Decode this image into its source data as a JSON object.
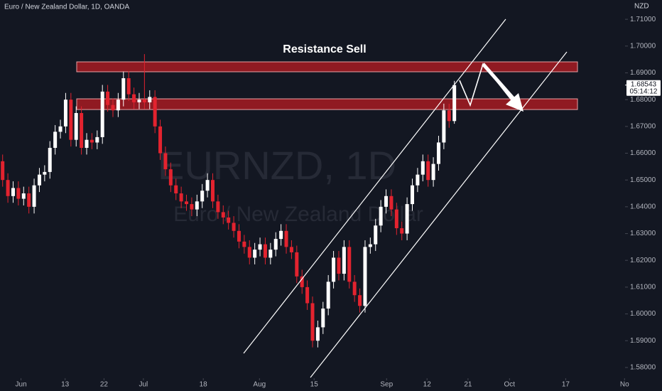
{
  "chart_data": {
    "type": "candlestick",
    "title": "Euro / New Zealand Dollar, 1D, OANDA",
    "watermark": "EURNZD, 1D",
    "watermark_subtitle": "Euro / New Zealand Dollar",
    "currency": "NZD",
    "annotation": "Resistance Sell",
    "current_price": 1.68543,
    "countdown": "05:14:12",
    "up_color": "#ffffff",
    "down_color": "#e3232f",
    "zone_color": "#9e1b22",
    "zones": [
      {
        "top": 1.6941,
        "bottom": 1.6904
      },
      {
        "top": 1.6803,
        "bottom": 1.6763
      }
    ],
    "xlim": [
      -0.5,
      118.5
    ],
    "ylim": [
      1.576,
      1.7172
    ],
    "xticks": [
      {
        "value": 3.5,
        "label": "Jun"
      },
      {
        "value": 11.9,
        "label": "13"
      },
      {
        "value": 19.3,
        "label": "22"
      },
      {
        "value": 26.8,
        "label": "Jul"
      },
      {
        "value": 38.2,
        "label": "18"
      },
      {
        "value": 48.9,
        "label": "Aug"
      },
      {
        "value": 59.3,
        "label": "15"
      },
      {
        "value": 73.1,
        "label": "Sep"
      },
      {
        "value": 80.8,
        "label": "12"
      },
      {
        "value": 88.6,
        "label": "21"
      },
      {
        "value": 96.5,
        "label": "Oct"
      },
      {
        "value": 107.2,
        "label": "17"
      },
      {
        "value": 118.4,
        "label": "No"
      }
    ],
    "yticks": [
      {
        "value": 1.58,
        "label": "1.58000"
      },
      {
        "value": 1.59,
        "label": "1.59000"
      },
      {
        "value": 1.6,
        "label": "1.60000"
      },
      {
        "value": 1.61,
        "label": "1.61000"
      },
      {
        "value": 1.62,
        "label": "1.62000"
      },
      {
        "value": 1.63,
        "label": "1.63000"
      },
      {
        "value": 1.64,
        "label": "1.64000"
      },
      {
        "value": 1.65,
        "label": "1.65000"
      },
      {
        "value": 1.66,
        "label": "1.66000"
      },
      {
        "value": 1.67,
        "label": "1.67000"
      },
      {
        "value": 1.68,
        "label": "1.68000"
      },
      {
        "value": 1.69,
        "label": "1.69000"
      },
      {
        "value": 1.7,
        "label": "1.70000"
      },
      {
        "value": 1.71,
        "label": "1.71000"
      }
    ],
    "open": [
      1.657,
      1.65,
      1.644,
      1.647,
      1.643,
      1.645,
      1.64,
      1.648,
      1.652,
      1.653,
      1.662,
      1.668,
      1.67,
      1.68,
      1.665,
      1.675,
      1.662,
      1.665,
      1.664,
      1.666,
      1.683,
      1.678,
      1.676,
      1.68,
      1.688,
      1.682,
      1.679,
      1.68,
      1.679,
      1.681,
      1.67,
      1.66,
      1.654,
      1.648,
      1.645,
      1.642,
      1.641,
      1.639,
      1.642,
      1.646,
      1.65,
      1.642,
      1.638,
      1.636,
      1.634,
      1.631,
      1.627,
      1.625,
      1.621,
      1.624,
      1.626,
      1.621,
      1.624,
      1.628,
      1.631,
      1.625,
      1.623,
      1.614,
      1.61,
      1.604,
      1.59,
      1.595,
      1.602,
      1.612,
      1.621,
      1.615,
      1.625,
      1.612,
      1.607,
      1.603,
      1.625,
      1.626,
      1.633,
      1.64,
      1.644,
      1.639,
      1.632,
      1.63,
      1.641,
      1.648,
      1.652,
      1.657,
      1.65,
      1.656,
      1.664,
      1.676,
      1.672
    ],
    "high": [
      1.6595,
      1.6525,
      1.6495,
      1.6495,
      1.6475,
      1.6475,
      1.6505,
      1.6545,
      1.6555,
      1.6645,
      1.6705,
      1.6725,
      1.6825,
      1.6825,
      1.6775,
      1.6775,
      1.6675,
      1.6675,
      1.6685,
      1.6855,
      1.6855,
      1.6805,
      1.6825,
      1.6905,
      1.6905,
      1.6845,
      1.6825,
      1.697,
      1.6835,
      1.6835,
      1.6725,
      1.6625,
      1.6565,
      1.6505,
      1.6475,
      1.6445,
      1.6435,
      1.6445,
      1.6485,
      1.6525,
      1.6525,
      1.6445,
      1.6405,
      1.6385,
      1.6365,
      1.6335,
      1.6295,
      1.6275,
      1.6265,
      1.6285,
      1.6285,
      1.6265,
      1.6305,
      1.6335,
      1.6335,
      1.6275,
      1.6255,
      1.6165,
      1.6125,
      1.6065,
      1.5975,
      1.6045,
      1.6145,
      1.6235,
      1.6235,
      1.6275,
      1.6275,
      1.6145,
      1.6095,
      1.6275,
      1.6285,
      1.6355,
      1.6425,
      1.6465,
      1.6465,
      1.6415,
      1.6345,
      1.6435,
      1.6505,
      1.6545,
      1.6595,
      1.6595,
      1.6585,
      1.6665,
      1.6785,
      1.6785,
      1.687
    ],
    "low": [
      1.6475,
      1.6415,
      1.6415,
      1.6405,
      1.6405,
      1.6375,
      1.6375,
      1.6455,
      1.6495,
      1.6505,
      1.6595,
      1.6655,
      1.6675,
      1.6625,
      1.6625,
      1.6595,
      1.6595,
      1.6615,
      1.6615,
      1.6635,
      1.6755,
      1.6735,
      1.6735,
      1.6775,
      1.6795,
      1.6765,
      1.6765,
      1.6765,
      1.6765,
      1.6675,
      1.6575,
      1.6515,
      1.6455,
      1.6425,
      1.6395,
      1.6385,
      1.6365,
      1.6365,
      1.6395,
      1.6435,
      1.6395,
      1.6355,
      1.6335,
      1.6315,
      1.6285,
      1.6245,
      1.6225,
      1.6185,
      1.6185,
      1.6215,
      1.6185,
      1.6185,
      1.6215,
      1.6255,
      1.6225,
      1.6205,
      1.6115,
      1.6075,
      1.6015,
      1.5875,
      1.5875,
      1.5925,
      1.5995,
      1.6095,
      1.6125,
      1.6125,
      1.6095,
      1.6045,
      1.6005,
      1.6005,
      1.6225,
      1.6235,
      1.6305,
      1.6375,
      1.6365,
      1.6295,
      1.6275,
      1.6275,
      1.6385,
      1.6455,
      1.6495,
      1.6475,
      1.6475,
      1.6535,
      1.6615,
      1.6695,
      1.671
    ],
    "close": [
      1.65,
      1.644,
      1.647,
      1.643,
      1.645,
      1.64,
      1.648,
      1.652,
      1.653,
      1.662,
      1.668,
      1.67,
      1.68,
      1.665,
      1.675,
      1.662,
      1.665,
      1.664,
      1.666,
      1.683,
      1.678,
      1.676,
      1.68,
      1.688,
      1.682,
      1.679,
      1.68,
      1.679,
      1.681,
      1.67,
      1.66,
      1.654,
      1.648,
      1.645,
      1.642,
      1.641,
      1.639,
      1.642,
      1.646,
      1.65,
      1.642,
      1.638,
      1.636,
      1.634,
      1.631,
      1.627,
      1.625,
      1.621,
      1.624,
      1.626,
      1.621,
      1.624,
      1.628,
      1.631,
      1.625,
      1.623,
      1.614,
      1.61,
      1.604,
      1.59,
      1.595,
      1.602,
      1.612,
      1.621,
      1.615,
      1.625,
      1.612,
      1.607,
      1.603,
      1.625,
      1.626,
      1.633,
      1.64,
      1.644,
      1.639,
      1.632,
      1.63,
      1.641,
      1.648,
      1.652,
      1.657,
      1.65,
      1.656,
      1.664,
      1.676,
      1.672,
      1.68543
    ]
  }
}
